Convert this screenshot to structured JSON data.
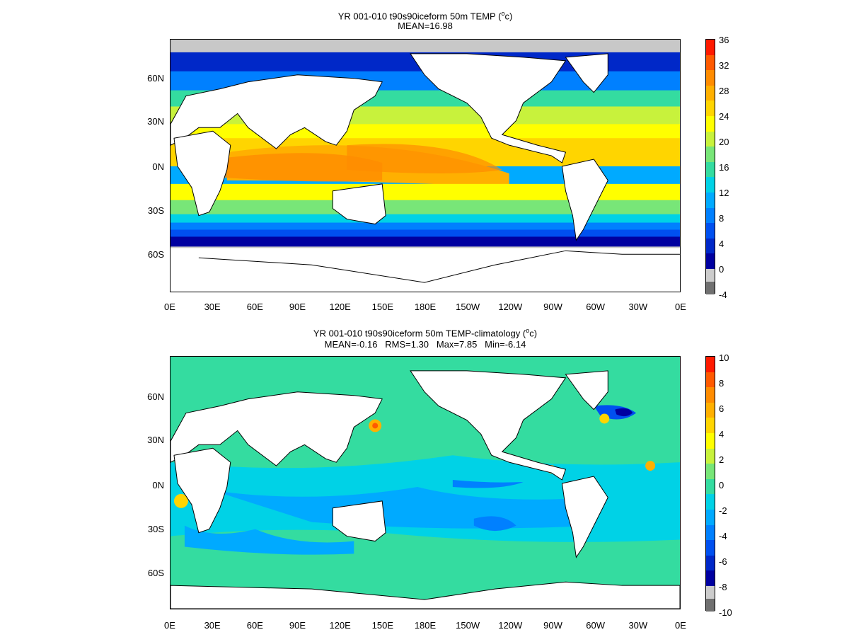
{
  "panels": [
    {
      "title_main": "YR 001-010 t90s90iceform 50m TEMP (",
      "title_sup": "o",
      "title_end": "c)",
      "subtitle": "MEAN=16.98",
      "colorbar_labels": [
        "36",
        "32",
        "28",
        "24",
        "20",
        "16",
        "12",
        "8",
        "4",
        "0",
        "-4"
      ],
      "colors": [
        "#ff1a00",
        "#ff5a00",
        "#ff8c00",
        "#ffb000",
        "#ffd500",
        "#ffff00",
        "#c8f23c",
        "#78e678",
        "#34dca0",
        "#00d2e6",
        "#00aaff",
        "#0080ff",
        "#0050f0",
        "#0028c8",
        "#0000a0",
        "#cccccc",
        "#707070"
      ]
    },
    {
      "title_main": "YR 001-010 t90s90iceform 50m TEMP-climatology (",
      "title_sup": "o",
      "title_end": "c)",
      "subtitle": "MEAN=-0.16   RMS=1.30   Max=7.85   Min=-6.14",
      "colorbar_labels": [
        "10",
        "8",
        "6",
        "4",
        "2",
        "0",
        "-2",
        "-4",
        "-6",
        "-8",
        "-10"
      ],
      "colors": [
        "#ff1a00",
        "#ff5a00",
        "#ff8c00",
        "#ffb000",
        "#ffd500",
        "#ffff00",
        "#c8f23c",
        "#78e678",
        "#34dca0",
        "#00d2e6",
        "#00aaff",
        "#0080ff",
        "#0050f0",
        "#0028c8",
        "#0000a0",
        "#cccccc",
        "#707070"
      ]
    }
  ],
  "lat_labels": [
    "60N",
    "30N",
    "0N",
    "30S",
    "60S"
  ],
  "lon_labels": [
    "0E",
    "30E",
    "60E",
    "90E",
    "120E",
    "150E",
    "180E",
    "150W",
    "120W",
    "90W",
    "60W",
    "30W",
    "0E"
  ],
  "land_color": "#ffffff",
  "ice_color": "#c8c8c8"
}
